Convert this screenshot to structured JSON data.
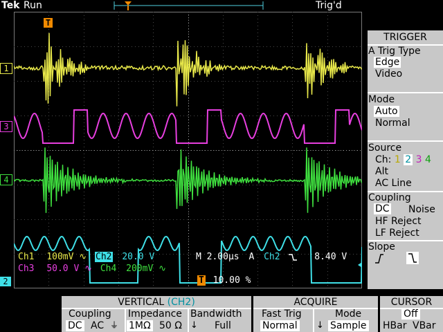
{
  "header": {
    "logo": "Tek",
    "run_state": "Run",
    "trigger_state": "Trig'd"
  },
  "markers": {
    "trigger_marker": "T",
    "ch1_marker": "1",
    "ch3_marker": "3",
    "ch4_marker": "4",
    "ch2_marker": "2"
  },
  "channel_readouts": {
    "ch1_label": "Ch1",
    "ch1_scale": "100mV",
    "ch2_label": "Ch2",
    "ch2_scale": "20.0 V",
    "ch3_label": "Ch3",
    "ch3_scale": "50.0 V",
    "ch4_label": "Ch4",
    "ch4_scale": "200mV",
    "coupling_symbol": "∿",
    "timebase": "M 2.00μs",
    "trig_source_label": "A",
    "trig_source_channel": "Ch2",
    "trig_slope_symbol": "⌐",
    "trig_level": "8.40 V",
    "trig_position": "10.00 %"
  },
  "trigger_menu": {
    "title": "TRIGGER",
    "type_label": "A Trig Type",
    "type_options": [
      "Edge",
      "Video"
    ],
    "type_selected": "Edge",
    "mode_label": "Mode",
    "mode_options": [
      "Auto",
      "Normal"
    ],
    "mode_selected": "Auto",
    "source_label": "Source",
    "source_ch_label": "Ch:",
    "source_channels": [
      "1",
      "2",
      "3",
      "4"
    ],
    "source_selected": "2",
    "source_other": [
      "Alt",
      "AC Line"
    ],
    "coupling_label": "Coupling",
    "coupling_options": [
      "DC",
      "Noise",
      "HF Reject",
      "LF Reject"
    ],
    "coupling_selected": "DC",
    "slope_label": "Slope"
  },
  "vertical_menu": {
    "title": "VERTICAL",
    "title_channel": "(CH2)",
    "coupling_label": "Coupling",
    "coupling_dc": "DC",
    "coupling_ac": "AC",
    "impedance_label": "Impedance",
    "impedance_1m": "1MΩ",
    "impedance_50": "50 Ω",
    "bandwidth_label": "Bandwidth",
    "bandwidth_value": "Full"
  },
  "acquire_menu": {
    "title": "ACQUIRE",
    "fast_trig_label": "Fast Trig",
    "fast_trig_value": "Normal",
    "mode_label": "Mode",
    "mode_value": "Sample"
  },
  "cursor_menu": {
    "title": "CURSOR",
    "state": "Off",
    "hbar": "HBar",
    "vbar": "VBar"
  },
  "colors": {
    "ch1": "#e8e84a",
    "ch2": "#3fe0e8",
    "ch3": "#e83fe0",
    "ch4": "#3fe03f",
    "trigger_marker": "#f08a00",
    "panel_bg": "#c8c8c8"
  }
}
